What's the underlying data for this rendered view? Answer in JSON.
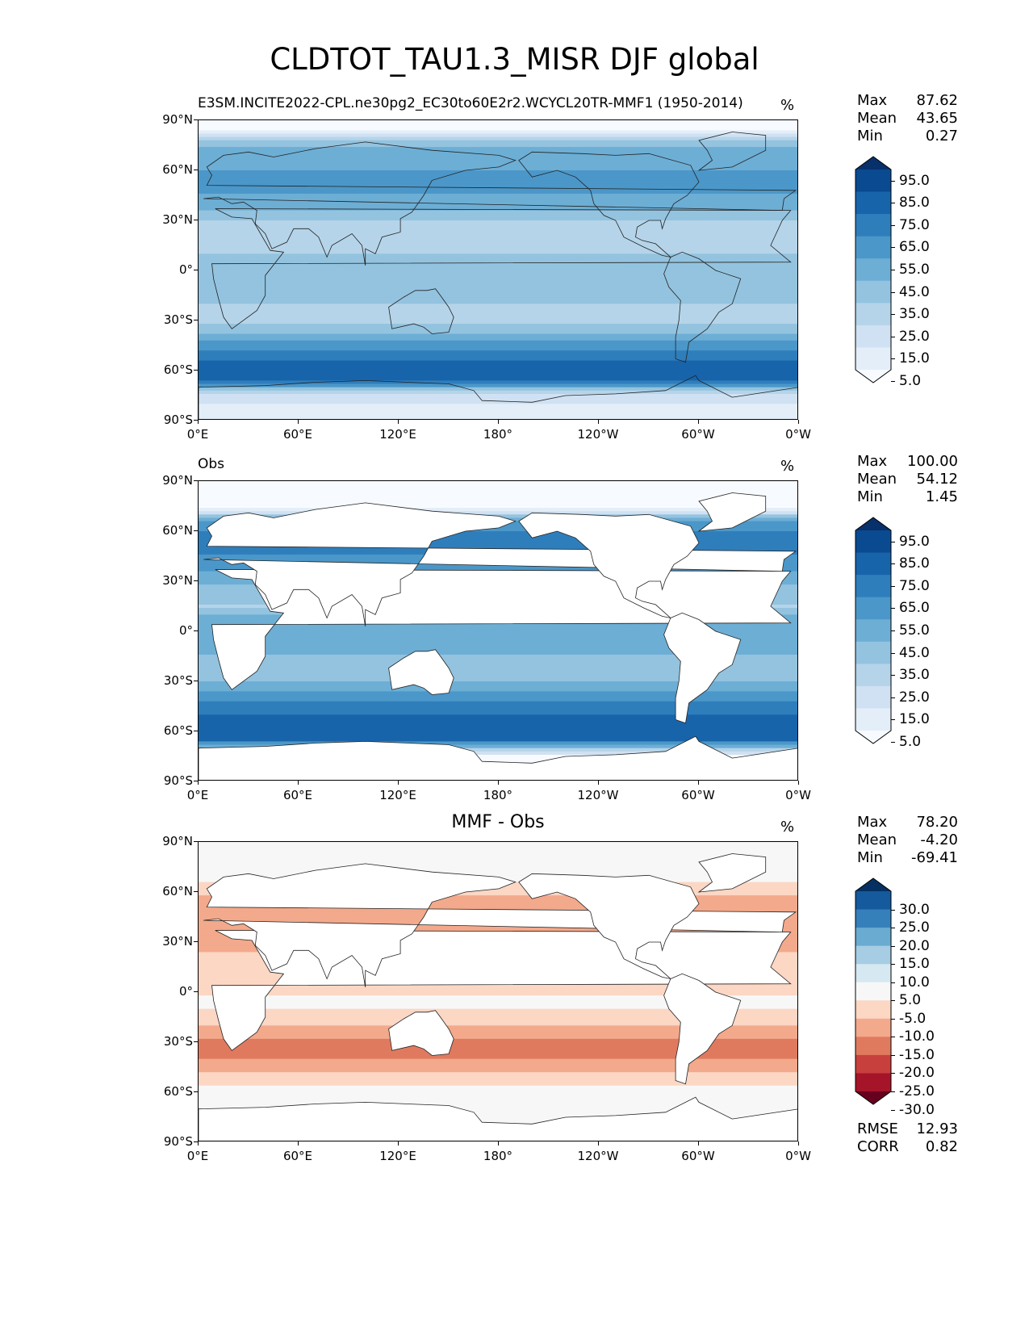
{
  "title": "CLDTOT_TAU1.3_MISR DJF global",
  "axes": {
    "y_ticks": [
      "90°N",
      "60°N",
      "30°N",
      "0°",
      "30°S",
      "60°S",
      "90°S"
    ],
    "x_ticks": [
      "0°E",
      "60°E",
      "120°E",
      "180°",
      "120°W",
      "60°W",
      "0°W"
    ]
  },
  "panels": [
    {
      "id": "model",
      "left_label": "E3SM.INCITE2022-CPL.ne30pg2_EC30to60E2r2.WCYCL20TR-MMF1 (1950-2014)",
      "center_label": "",
      "units": "%",
      "stats": [
        {
          "label": "Max",
          "value": "87.62"
        },
        {
          "label": "Mean",
          "value": "43.65"
        },
        {
          "label": "Min",
          "value": "0.27"
        }
      ],
      "colorbar": {
        "colors": [
          "#f7fbff",
          "#e3eef9",
          "#cfe1f2",
          "#b5d4e9",
          "#93c3df",
          "#6daed5",
          "#4b97c9",
          "#2f7ebc",
          "#1864aa",
          "#0a4a90",
          "#08306b"
        ],
        "labels": [
          "95.0",
          "85.0",
          "75.0",
          "65.0",
          "55.0",
          "45.0",
          "35.0",
          "25.0",
          "15.0",
          "5.0"
        ]
      }
    },
    {
      "id": "obs",
      "left_label": "Obs",
      "center_label": "",
      "units": "%",
      "stats": [
        {
          "label": "Max",
          "value": "100.00"
        },
        {
          "label": "Mean",
          "value": "54.12"
        },
        {
          "label": "Min",
          "value": "1.45"
        }
      ],
      "colorbar": {
        "colors": [
          "#f7fbff",
          "#e3eef9",
          "#cfe1f2",
          "#b5d4e9",
          "#93c3df",
          "#6daed5",
          "#4b97c9",
          "#2f7ebc",
          "#1864aa",
          "#0a4a90",
          "#08306b"
        ],
        "labels": [
          "95.0",
          "85.0",
          "75.0",
          "65.0",
          "55.0",
          "45.0",
          "35.0",
          "25.0",
          "15.0",
          "5.0"
        ]
      }
    },
    {
      "id": "diff",
      "left_label": "",
      "center_label": "MMF - Obs",
      "units": "%",
      "stats": [
        {
          "label": "Max",
          "value": "78.20"
        },
        {
          "label": "Mean",
          "value": "-4.20"
        },
        {
          "label": "Min",
          "value": "-69.41"
        }
      ],
      "extra_stats": [
        {
          "label": "RMSE",
          "value": "12.93"
        },
        {
          "label": "CORR",
          "value": "0.82"
        }
      ],
      "colorbar": {
        "colors": [
          "#67001f",
          "#a51429",
          "#c8403e",
          "#e07a5f",
          "#f3a98b",
          "#fbd7c4",
          "#f7f7f7",
          "#d6e8f1",
          "#a6cde3",
          "#6aabd1",
          "#3580bb",
          "#145a9c",
          "#053061"
        ],
        "labels": [
          "30.0",
          "25.0",
          "20.0",
          "15.0",
          "10.0",
          "5.0",
          "-5.0",
          "-10.0",
          "-15.0",
          "-20.0",
          "-25.0",
          "-30.0"
        ]
      }
    }
  ],
  "chart_data": {
    "type": "heatmap",
    "title": "CLDTOT_TAU1.3_MISR DJF global",
    "projection": "plate carree, centered 180°",
    "xlim": [
      0,
      360
    ],
    "ylim": [
      -90,
      90
    ],
    "zonal_profiles": {
      "lat": [
        -85,
        -75,
        -65,
        -55,
        -45,
        -35,
        -25,
        -15,
        -5,
        5,
        15,
        25,
        35,
        45,
        55,
        65,
        75,
        85
      ],
      "model": [
        12,
        18,
        80,
        76,
        60,
        38,
        30,
        40,
        45,
        42,
        26,
        28,
        45,
        55,
        58,
        52,
        45,
        0
      ],
      "obs": [
        0,
        0,
        80,
        82,
        70,
        52,
        40,
        45,
        50,
        52,
        35,
        40,
        55,
        65,
        70,
        60,
        0,
        0
      ],
      "diff": [
        0,
        0,
        0,
        -5,
        -12,
        -18,
        -14,
        -6,
        -4,
        -8,
        -9,
        -10,
        -10,
        -10,
        -12,
        -6,
        0,
        0
      ]
    }
  }
}
